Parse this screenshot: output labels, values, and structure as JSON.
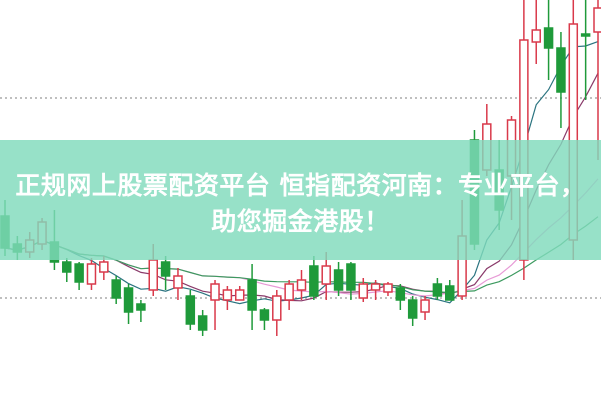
{
  "banner": {
    "line1": "正规网上股票配资平台 恒指配资河南：专业平台，",
    "line2": "助您掘金港股！"
  },
  "colors": {
    "up": "#d9394a",
    "down": "#1f9a3a",
    "banner": "#80dabc",
    "grid": "#999999",
    "ma5": "#2b7480",
    "ma10": "#8a3a6a",
    "ma20": "#e79ad6",
    "ma30": "#3c9a5f"
  },
  "chart_data": {
    "type": "candlestick",
    "ylim": [
      0,
      100
    ],
    "gridlines": [
      25.5,
      75.5
    ],
    "moving_averages": [
      5,
      10,
      20,
      30
    ],
    "candles": [
      [
        46,
        50,
        36,
        38
      ],
      [
        39,
        41,
        35,
        37
      ],
      [
        37,
        42,
        35.5,
        40
      ],
      [
        39,
        45.5,
        37.5,
        44.5
      ],
      [
        39.5,
        47.5,
        32.5,
        34.5
      ],
      [
        34.5,
        35.5,
        29.5,
        32
      ],
      [
        34,
        34.5,
        27.5,
        29.5
      ],
      [
        29,
        35.5,
        27.5,
        34
      ],
      [
        32,
        36,
        30,
        34.5
      ],
      [
        30,
        31,
        24,
        25.5
      ],
      [
        28,
        29,
        19,
        22
      ],
      [
        24,
        25,
        19.5,
        22.5
      ],
      [
        27.5,
        39,
        26,
        35
      ],
      [
        34.5,
        36,
        27.5,
        31
      ],
      [
        28,
        33,
        25,
        31
      ],
      [
        26,
        27.5,
        17.5,
        19
      ],
      [
        21,
        22.5,
        16,
        17.5
      ],
      [
        25,
        30,
        17.5,
        29
      ],
      [
        25,
        28.5,
        22.5,
        27.5
      ],
      [
        25,
        28.5,
        25,
        27.5
      ],
      [
        30,
        34,
        17.5,
        22.5
      ],
      [
        22.5,
        23,
        17.5,
        20
      ],
      [
        20,
        27.5,
        16,
        26
      ],
      [
        25,
        30,
        22.5,
        29
      ],
      [
        27.5,
        32.5,
        25,
        30
      ],
      [
        33.5,
        36,
        25,
        26
      ],
      [
        29,
        37,
        25,
        33.5
      ],
      [
        32.5,
        34.5,
        26,
        27.5
      ],
      [
        34,
        34.5,
        25,
        27.5
      ],
      [
        25.5,
        30.5,
        24.5,
        29
      ],
      [
        27.5,
        30,
        25,
        29
      ],
      [
        27,
        29.5,
        26,
        29
      ],
      [
        28,
        29,
        22.5,
        25
      ],
      [
        25,
        26,
        18.5,
        20.5
      ],
      [
        22,
        26,
        20,
        25
      ],
      [
        29,
        30.5,
        25,
        26
      ],
      [
        28.5,
        30,
        25,
        25
      ],
      [
        26,
        50,
        25,
        41
      ],
      [
        65,
        67.5,
        37.5,
        39
      ],
      [
        57.5,
        74,
        56,
        69
      ],
      [
        57.5,
        65,
        42.5,
        47.5
      ],
      [
        56,
        71,
        45,
        70
      ],
      [
        35,
        100,
        30,
        90
      ],
      [
        89.5,
        100,
        84,
        92.5
      ],
      [
        93,
        100,
        80,
        88
      ],
      [
        88,
        92,
        68,
        77
      ],
      [
        40,
        100,
        35,
        94
      ],
      [
        91.5,
        100,
        75,
        91
      ],
      [
        92,
        100,
        60,
        98
      ]
    ]
  }
}
